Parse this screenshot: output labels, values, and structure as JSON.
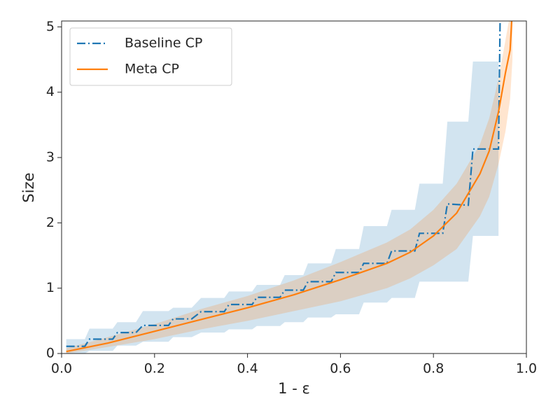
{
  "chart_data": {
    "type": "line",
    "x_label": "1 - ε",
    "y_label": "Size",
    "xlim": [
      0,
      1
    ],
    "ylim": [
      0,
      5.09
    ],
    "xticks": [
      {
        "value": 0,
        "label": "0.0"
      },
      0.2,
      0.4,
      0.6,
      0.8,
      {
        "value": 1,
        "label": "1.0"
      }
    ],
    "yticks": [
      0,
      1,
      2,
      3,
      4,
      5
    ],
    "legend_position": "upper left",
    "series": [
      {
        "name": "Baseline CP",
        "color": "#1f77b4",
        "line_style": "dashdot",
        "x": [
          0.01,
          0.05,
          0.06,
          0.11,
          0.12,
          0.16,
          0.175,
          0.23,
          0.24,
          0.28,
          0.3,
          0.35,
          0.36,
          0.41,
          0.42,
          0.47,
          0.48,
          0.52,
          0.53,
          0.58,
          0.59,
          0.64,
          0.65,
          0.7,
          0.71,
          0.76,
          0.77,
          0.82,
          0.83,
          0.875,
          0.885,
          0.94,
          0.945
        ],
        "values": [
          0.11,
          0.11,
          0.22,
          0.22,
          0.32,
          0.32,
          0.43,
          0.43,
          0.53,
          0.53,
          0.64,
          0.64,
          0.75,
          0.75,
          0.86,
          0.86,
          0.97,
          0.97,
          1.1,
          1.1,
          1.24,
          1.24,
          1.38,
          1.38,
          1.57,
          1.57,
          1.84,
          1.84,
          2.29,
          2.27,
          3.13,
          3.13,
          6
        ],
        "lower": [
          0,
          0,
          0.04,
          0.04,
          0.12,
          0.12,
          0.18,
          0.18,
          0.25,
          0.25,
          0.32,
          0.32,
          0.37,
          0.37,
          0.42,
          0.42,
          0.48,
          0.48,
          0.55,
          0.55,
          0.6,
          0.6,
          0.78,
          0.78,
          0.85,
          0.85,
          1.1,
          1.1,
          1.1,
          1.1,
          1.8,
          1.8,
          null
        ],
        "upper": [
          0.22,
          0.22,
          0.38,
          0.38,
          0.48,
          0.48,
          0.65,
          0.65,
          0.7,
          0.7,
          0.85,
          0.85,
          0.95,
          0.95,
          1.05,
          1.05,
          1.2,
          1.2,
          1.38,
          1.38,
          1.6,
          1.6,
          1.95,
          1.95,
          2.2,
          2.2,
          2.6,
          2.6,
          3.55,
          3.55,
          4.47,
          4.47,
          null
        ]
      },
      {
        "name": "Meta CP",
        "color": "#ff7f0e",
        "line_style": "solid",
        "x": [
          0.01,
          0.1,
          0.2,
          0.3,
          0.4,
          0.5,
          0.6,
          0.7,
          0.75,
          0.8,
          0.85,
          0.9,
          0.92,
          0.94,
          0.955,
          0.965,
          0.97
        ],
        "values": [
          0.03,
          0.16,
          0.34,
          0.52,
          0.7,
          0.9,
          1.13,
          1.38,
          1.55,
          1.8,
          2.15,
          2.75,
          3.1,
          3.7,
          4.3,
          4.65,
          5.3
        ],
        "lower": [
          0,
          0.1,
          0.22,
          0.37,
          0.5,
          0.65,
          0.8,
          1.0,
          1.15,
          1.35,
          1.6,
          2.1,
          2.4,
          2.9,
          3.4,
          3.9,
          4.5
        ],
        "upper": [
          0.08,
          0.25,
          0.45,
          0.68,
          0.88,
          1.12,
          1.4,
          1.7,
          1.9,
          2.2,
          2.6,
          3.2,
          3.6,
          4.2,
          4.8,
          5.2,
          5.6
        ]
      }
    ]
  }
}
